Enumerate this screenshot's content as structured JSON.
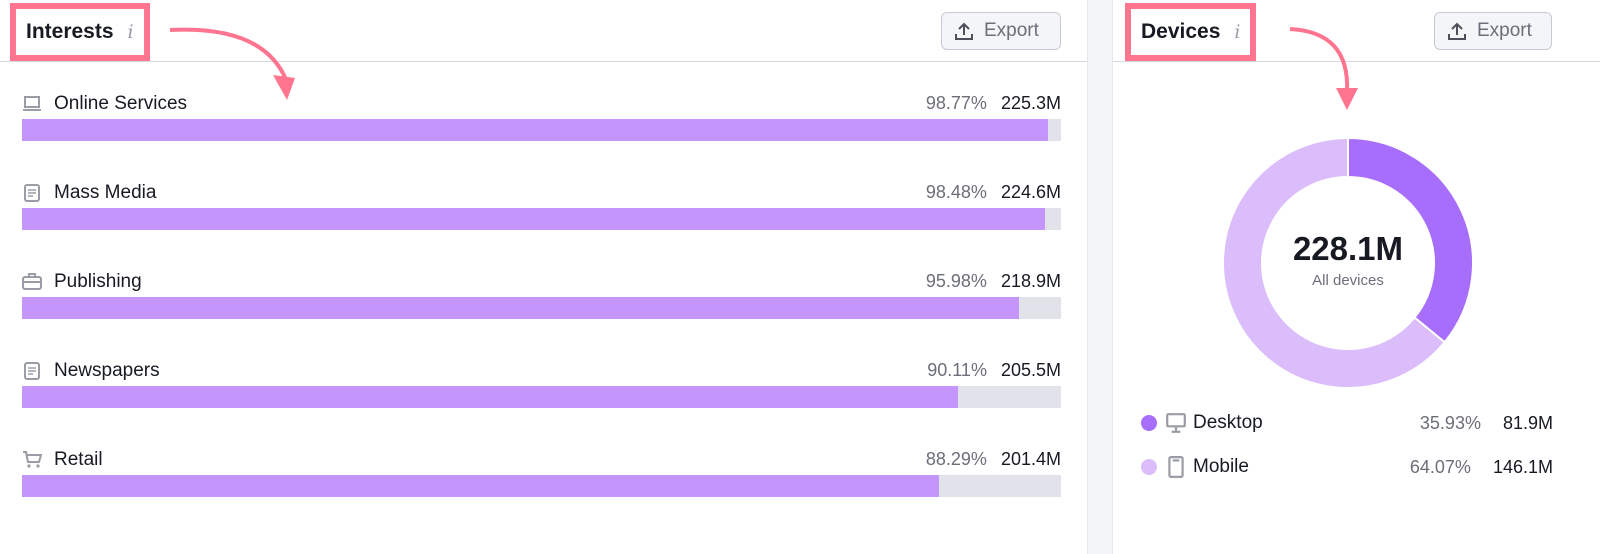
{
  "interests": {
    "title": "Interests",
    "export_label": "Export",
    "items": [
      {
        "icon": "laptop-icon",
        "label": "Online Services",
        "pct": "98.77%",
        "value": "225.3M",
        "percent": 98.77
      },
      {
        "icon": "newspaper-icon",
        "label": "Mass Media",
        "pct": "98.48%",
        "value": "224.6M",
        "percent": 98.48
      },
      {
        "icon": "briefcase-icon",
        "label": "Publishing",
        "pct": "95.98%",
        "value": "218.9M",
        "percent": 95.98
      },
      {
        "icon": "newspaper-icon",
        "label": "Newspapers",
        "pct": "90.11%",
        "value": "205.5M",
        "percent": 90.11
      },
      {
        "icon": "cart-icon",
        "label": "Retail",
        "pct": "88.29%",
        "value": "201.4M",
        "percent": 88.29
      }
    ]
  },
  "devices": {
    "title": "Devices",
    "export_label": "Export",
    "total": "228.1M",
    "total_label": "All devices",
    "items": [
      {
        "icon": "desktop-icon",
        "label": "Desktop",
        "pct": "35.93%",
        "value": "81.9M",
        "percent": 35.93,
        "color": "#a66efa"
      },
      {
        "icon": "mobile-icon",
        "label": "Mobile",
        "pct": "64.07%",
        "value": "146.1M",
        "percent": 64.07,
        "color": "#dcbdfb"
      }
    ]
  },
  "colors": {
    "bar": "#c496fc",
    "track": "#e1e2ea",
    "highlight": "#ff7590"
  }
}
